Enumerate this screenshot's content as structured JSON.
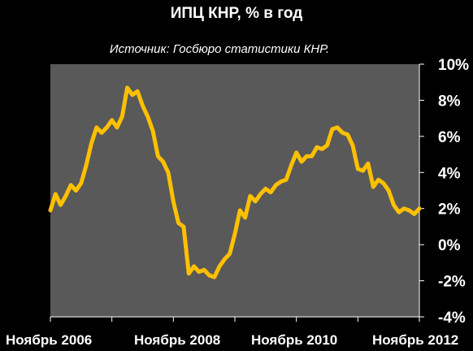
{
  "chart_data": {
    "type": "line",
    "title": "ИПЦ КНР, % в год",
    "subtitle": "Источник: Госбюро статистики КНР.",
    "xlabel": "",
    "ylabel": "",
    "x_ticks": [
      "Ноябрь 2006",
      "Ноябрь 2008",
      "Ноябрь 2010",
      "Ноябрь 2012"
    ],
    "y_ticks": [
      "-4%",
      "-2%",
      "0%",
      "2%",
      "4%",
      "6%",
      "8%",
      "10%"
    ],
    "ylim": [
      -4,
      10
    ],
    "x_range": [
      "2006-11",
      "2012-11"
    ],
    "grid": false,
    "line_color": "#FFC000",
    "plot_background": "#595959",
    "page_background": "#000000",
    "series": [
      {
        "x": [
          "2006-11",
          "2006-12",
          "2007-01",
          "2007-02",
          "2007-03",
          "2007-04",
          "2007-05",
          "2007-06",
          "2007-07",
          "2007-08",
          "2007-09",
          "2007-10",
          "2007-11",
          "2007-12",
          "2008-01",
          "2008-02",
          "2008-03",
          "2008-04",
          "2008-05",
          "2008-06",
          "2008-07",
          "2008-08",
          "2008-09",
          "2008-10",
          "2008-11",
          "2008-12",
          "2009-01",
          "2009-02",
          "2009-03",
          "2009-04",
          "2009-05",
          "2009-06",
          "2009-07",
          "2009-08",
          "2009-09",
          "2009-10",
          "2009-11",
          "2009-12",
          "2010-01",
          "2010-02",
          "2010-03",
          "2010-04",
          "2010-05",
          "2010-06",
          "2010-07",
          "2010-08",
          "2010-09",
          "2010-10",
          "2010-11",
          "2010-12",
          "2011-01",
          "2011-02",
          "2011-03",
          "2011-04",
          "2011-05",
          "2011-06",
          "2011-07",
          "2011-08",
          "2011-09",
          "2011-10",
          "2011-11",
          "2011-12",
          "2012-01",
          "2012-02",
          "2012-03",
          "2012-04",
          "2012-05",
          "2012-06",
          "2012-07",
          "2012-08",
          "2012-09",
          "2012-10",
          "2012-11"
        ],
        "values": [
          1.9,
          2.8,
          2.2,
          2.7,
          3.3,
          3.0,
          3.4,
          4.4,
          5.6,
          6.5,
          6.2,
          6.5,
          6.9,
          6.5,
          7.1,
          8.7,
          8.3,
          8.5,
          7.7,
          7.1,
          6.3,
          4.9,
          4.6,
          4.0,
          2.4,
          1.2,
          1.0,
          -1.6,
          -1.2,
          -1.5,
          -1.4,
          -1.7,
          -1.8,
          -1.2,
          -0.8,
          -0.5,
          0.6,
          1.9,
          1.5,
          2.7,
          2.4,
          2.8,
          3.1,
          2.9,
          3.3,
          3.5,
          3.6,
          4.4,
          5.1,
          4.6,
          4.9,
          4.9,
          5.4,
          5.3,
          5.5,
          6.4,
          6.5,
          6.2,
          6.1,
          5.5,
          4.2,
          4.1,
          4.5,
          3.2,
          3.6,
          3.4,
          3.0,
          2.2,
          1.8,
          2.0,
          1.9,
          1.7,
          2.0
        ]
      }
    ]
  }
}
